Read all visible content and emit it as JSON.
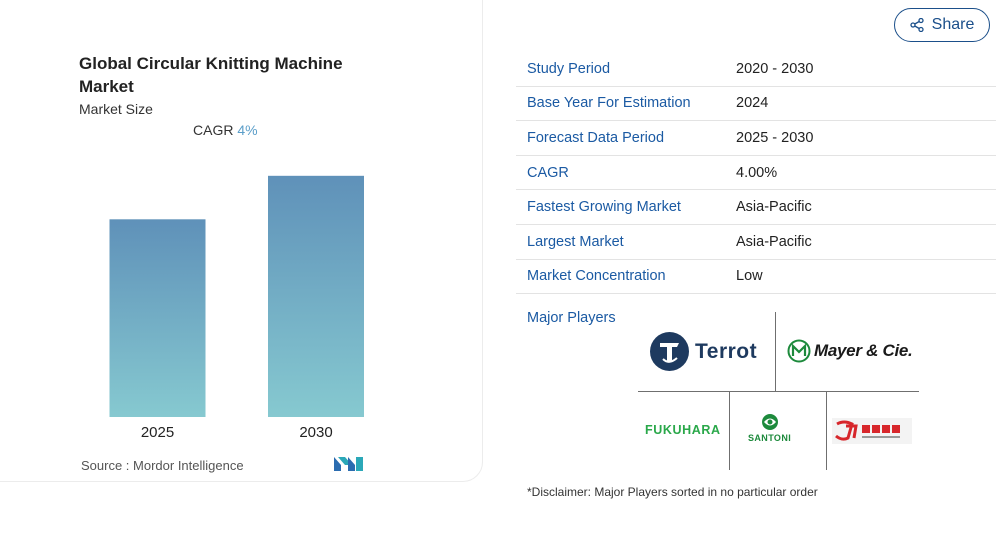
{
  "chart": {
    "title": "Global Circular Knitting Machine Market",
    "subtitle": "Market Size",
    "cagr_label": "CAGR",
    "cagr_value": "4%",
    "source": "Source :  Mordor Intelligence"
  },
  "chart_data": {
    "type": "bar",
    "categories": [
      "2025",
      "2030"
    ],
    "values": [
      1.0,
      1.22
    ],
    "title": "Global Circular Knitting Machine Market",
    "xlabel": "",
    "ylabel": "",
    "ylim": [
      0,
      1.3
    ],
    "grid": false,
    "bar_gradient": [
      "#5f91b9",
      "#86c9d0"
    ]
  },
  "share": {
    "label": "Share",
    "icon": "share-icon"
  },
  "info": {
    "rows": [
      {
        "key": "Study Period",
        "value": "2020 - 2030"
      },
      {
        "key": "Base Year For Estimation",
        "value": "2024"
      },
      {
        "key": "Forecast Data Period",
        "value": "2025 - 2030"
      },
      {
        "key": "CAGR",
        "value": "4.00%"
      },
      {
        "key": "Fastest Growing Market",
        "value": "Asia-Pacific"
      },
      {
        "key": "Largest Market",
        "value": "Asia-Pacific"
      },
      {
        "key": "Market Concentration",
        "value": "Low"
      }
    ]
  },
  "players": {
    "label": "Major Players",
    "logos": {
      "terrot": "Terrot",
      "mayer": "Mayer & Cie.",
      "fukuhara": "FUKUHARA",
      "santoni": "SANTONI"
    }
  },
  "disclaimer": "*Disclaimer: Major Players sorted in no particular order",
  "colors": {
    "accent": "#1b5aa3",
    "share_border": "#1b4f8a",
    "terrot_navy": "#1e3a5f",
    "fukuhara_green": "#2aa84a",
    "santoni_green": "#1d8a3c",
    "red_logo": "#d7262b"
  }
}
